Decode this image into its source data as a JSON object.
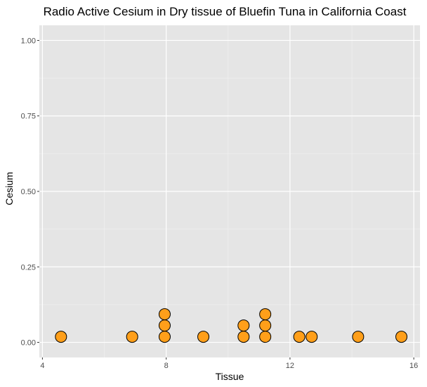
{
  "chart_data": {
    "type": "dotplot",
    "title": "Radio Active Cesium in Dry tissue of Bluefin Tuna in California Coast",
    "xlabel": "Tissue",
    "ylabel": "Cesium",
    "xlim": [
      3.9,
      16.2
    ],
    "ylim": [
      -0.05,
      1.05
    ],
    "x_ticks": [
      4,
      8,
      12,
      16
    ],
    "x_tick_labels": [
      "4",
      "8",
      "12",
      "16"
    ],
    "y_ticks": [
      0,
      0.25,
      0.5,
      0.75,
      1.0
    ],
    "y_tick_labels": [
      "0.00",
      "0.25",
      "0.50",
      "0.75",
      "1.00"
    ],
    "grid": true,
    "panel_background": "#e5e5e5",
    "point_fill": "#ff9f1a",
    "point_stroke": "#000000",
    "stacks": [
      {
        "x": 4.6,
        "count": 1
      },
      {
        "x": 6.9,
        "count": 1
      },
      {
        "x": 7.95,
        "count": 3
      },
      {
        "x": 9.2,
        "count": 1
      },
      {
        "x": 10.5,
        "count": 2
      },
      {
        "x": 11.2,
        "count": 3
      },
      {
        "x": 12.3,
        "count": 1
      },
      {
        "x": 12.7,
        "count": 1
      },
      {
        "x": 14.2,
        "count": 1
      },
      {
        "x": 15.6,
        "count": 1
      }
    ]
  }
}
